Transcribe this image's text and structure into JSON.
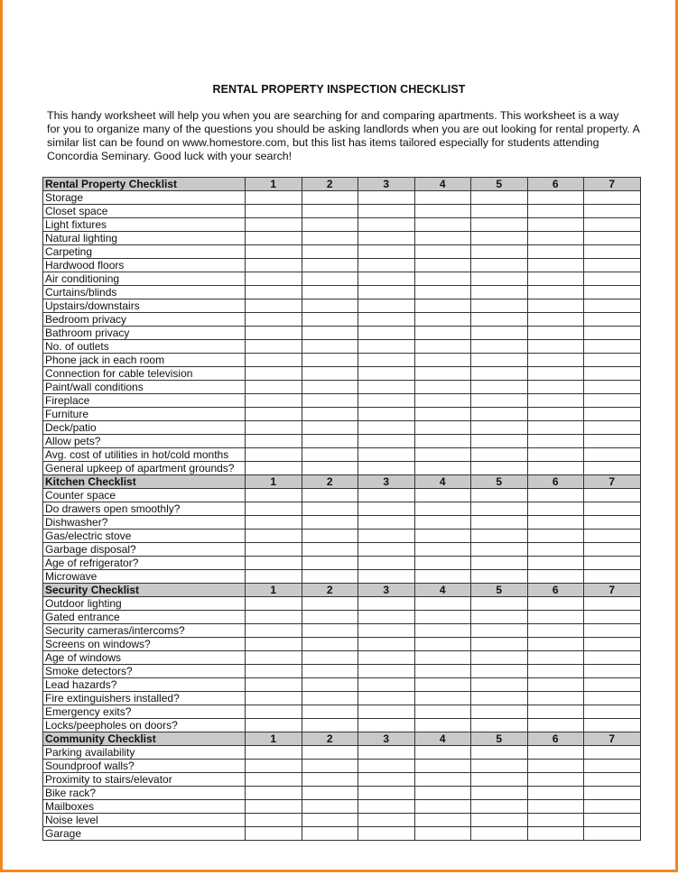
{
  "document": {
    "title": "RENTAL PROPERTY INSPECTION CHECKLIST",
    "intro_lines": [
      "This handy worksheet will help you when you are searching for and comparing apartments.  This worksheet is a way",
      "for you to organize many of the questions you should be asking landlords when you are out looking for rental property. A",
      "similar list can be found on www.homestore.com, but this list has items tailored especially for students attending",
      "Concordia Seminary. Good luck with your search!"
    ],
    "columns": [
      "1",
      "2",
      "3",
      "4",
      "5",
      "6",
      "7"
    ],
    "sections": [
      {
        "title": "Rental Property Checklist",
        "items": [
          "Storage",
          "Closet space",
          "Light fixtures",
          "Natural lighting",
          "Carpeting",
          "Hardwood floors",
          "Air conditioning",
          "Curtains/blinds",
          "Upstairs/downstairs",
          "Bedroom privacy",
          "Bathroom privacy",
          "No. of outlets",
          "Phone jack in each room",
          "Connection for cable television",
          "Paint/wall conditions",
          "Fireplace",
          "Furniture",
          "Deck/patio",
          "Allow pets?",
          "Avg. cost of utilities in hot/cold months",
          "General upkeep of apartment grounds?"
        ]
      },
      {
        "title": "Kitchen Checklist",
        "items": [
          "Counter space",
          "Do drawers open smoothly?",
          "Dishwasher?",
          "Gas/electric stove",
          "Garbage disposal?",
          "Age of refrigerator?",
          "Microwave"
        ]
      },
      {
        "title": "Security Checklist",
        "items": [
          "Outdoor lighting",
          "Gated entrance",
          "Security cameras/intercoms?",
          "Screens on windows?",
          "Age of windows",
          "Smoke detectors?",
          "Lead hazards?",
          "Fire extinguishers installed?",
          "Emergency exits?",
          "Locks/peepholes on doors?"
        ]
      },
      {
        "title": "Community Checklist",
        "items": [
          "Parking availability",
          "Soundproof walls?",
          "Proximity to stairs/elevator",
          "Bike rack?",
          "Mailboxes",
          "Noise level",
          "Garage"
        ]
      }
    ],
    "colors": {
      "frame": "#f08a1c",
      "header_fill": "#c9c9c9"
    }
  }
}
